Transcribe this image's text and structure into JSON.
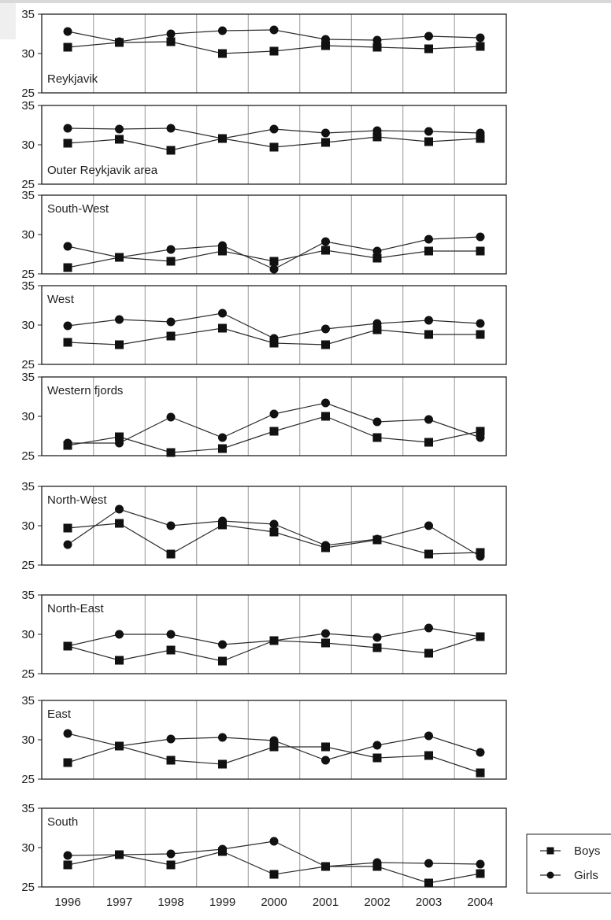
{
  "chart_data": {
    "type": "line",
    "x": [
      1996,
      1997,
      1998,
      1999,
      2000,
      2001,
      2002,
      2003,
      2004
    ],
    "x_tick_labels": [
      "1996",
      "1997",
      "1998",
      "1999",
      "2000",
      "2001",
      "2002",
      "2003",
      "2004"
    ],
    "ylim": [
      25,
      35
    ],
    "y_ticks": [
      25,
      30,
      35
    ],
    "grid": "vertical",
    "colors": {
      "line": "#2b2b2b",
      "grid": "#999999",
      "frame": "#1f1f1f"
    },
    "legend": {
      "placement": "bottom-right",
      "entries": [
        {
          "label": "Boys",
          "marker": "square"
        },
        {
          "label": "Girls",
          "marker": "circle"
        }
      ]
    },
    "panels": [
      {
        "title": "Reykjavik",
        "title_position": "bottom-left",
        "series": [
          {
            "name": "Boys",
            "marker": "square",
            "values": [
              30.8,
              31.4,
              31.5,
              30.0,
              30.3,
              31.0,
              30.8,
              30.6,
              30.9
            ]
          },
          {
            "name": "Girls",
            "marker": "circle",
            "values": [
              32.8,
              31.5,
              32.5,
              32.9,
              33.0,
              31.8,
              31.7,
              32.2,
              32.0
            ]
          }
        ]
      },
      {
        "title": "Outer Reykjavik area",
        "title_position": "bottom-left",
        "series": [
          {
            "name": "Boys",
            "marker": "square",
            "values": [
              30.2,
              30.7,
              29.3,
              30.8,
              29.7,
              30.3,
              31.0,
              30.4,
              30.8
            ]
          },
          {
            "name": "Girls",
            "marker": "circle",
            "values": [
              32.1,
              32.0,
              32.1,
              30.8,
              32.0,
              31.5,
              31.8,
              31.7,
              31.5
            ]
          }
        ]
      },
      {
        "title": "South-West",
        "title_position": "top-left",
        "series": [
          {
            "name": "Boys",
            "marker": "square",
            "values": [
              25.8,
              27.1,
              26.6,
              27.9,
              26.6,
              28.0,
              27.0,
              27.9,
              27.9
            ]
          },
          {
            "name": "Girls",
            "marker": "circle",
            "values": [
              28.5,
              27.1,
              28.1,
              28.6,
              25.6,
              29.1,
              27.9,
              29.4,
              29.7
            ]
          }
        ]
      },
      {
        "title": "West",
        "title_position": "top-left",
        "series": [
          {
            "name": "Boys",
            "marker": "square",
            "values": [
              27.8,
              27.5,
              28.6,
              29.6,
              27.7,
              27.5,
              29.4,
              28.8,
              28.8
            ]
          },
          {
            "name": "Girls",
            "marker": "circle",
            "values": [
              29.9,
              30.7,
              30.4,
              31.5,
              28.3,
              29.5,
              30.2,
              30.6,
              30.2
            ]
          }
        ]
      },
      {
        "title": "Western fjords",
        "title_position": "top-left",
        "series": [
          {
            "name": "Boys",
            "marker": "square",
            "values": [
              26.3,
              27.4,
              25.4,
              25.9,
              28.1,
              30.0,
              27.3,
              26.7,
              28.1
            ]
          },
          {
            "name": "Girls",
            "marker": "circle",
            "values": [
              26.6,
              26.6,
              29.9,
              27.3,
              30.3,
              31.7,
              29.3,
              29.6,
              27.3
            ]
          }
        ]
      },
      {
        "title": "North-West",
        "title_position": "top-left",
        "series": [
          {
            "name": "Boys",
            "marker": "square",
            "values": [
              29.7,
              30.3,
              26.4,
              30.1,
              29.2,
              27.2,
              28.2,
              26.4,
              26.6
            ]
          },
          {
            "name": "Girls",
            "marker": "circle",
            "values": [
              27.6,
              32.1,
              30.0,
              30.6,
              30.2,
              27.5,
              28.3,
              30.0,
              26.1
            ]
          }
        ]
      },
      {
        "title": "North-East",
        "title_position": "top-left",
        "series": [
          {
            "name": "Boys",
            "marker": "square",
            "values": [
              28.5,
              26.7,
              28.0,
              26.6,
              29.2,
              28.9,
              28.3,
              27.6,
              29.7
            ]
          },
          {
            "name": "Girls",
            "marker": "circle",
            "values": [
              28.5,
              30.0,
              30.0,
              28.7,
              29.2,
              30.1,
              29.6,
              30.8,
              29.7
            ]
          }
        ]
      },
      {
        "title": "East",
        "title_position": "top-left",
        "series": [
          {
            "name": "Boys",
            "marker": "square",
            "values": [
              27.1,
              29.2,
              27.4,
              26.9,
              29.1,
              29.1,
              27.7,
              28.0,
              25.8
            ]
          },
          {
            "name": "Girls",
            "marker": "circle",
            "values": [
              30.8,
              29.2,
              30.1,
              30.3,
              29.9,
              27.4,
              29.3,
              30.5,
              28.4
            ]
          }
        ]
      },
      {
        "title": "South",
        "title_position": "top-left",
        "series": [
          {
            "name": "Boys",
            "marker": "square",
            "values": [
              27.8,
              29.1,
              27.8,
              29.5,
              26.6,
              27.6,
              27.6,
              25.5,
              26.7
            ]
          },
          {
            "name": "Girls",
            "marker": "circle",
            "values": [
              29.0,
              29.1,
              29.2,
              29.8,
              30.8,
              27.6,
              28.1,
              28.0,
              27.9
            ]
          }
        ]
      }
    ]
  }
}
